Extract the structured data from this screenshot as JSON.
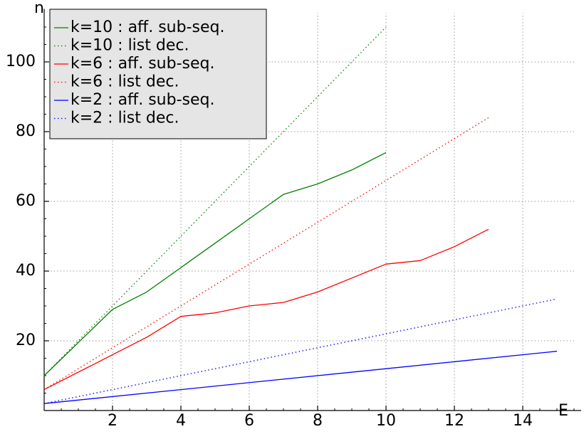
{
  "chart_data": {
    "type": "line",
    "xlabel": "E",
    "ylabel": "n",
    "xlim": [
      0,
      15.5
    ],
    "ylim": [
      0,
      114
    ],
    "xticks": [
      2,
      4,
      6,
      8,
      10,
      12,
      14
    ],
    "yticks": [
      20,
      40,
      60,
      80,
      100
    ],
    "grid": true,
    "legend_position": "top-left",
    "series": [
      {
        "name": "k=10 : aff. sub-seq.",
        "color": "#008000",
        "style": "solid",
        "x": [
          0,
          2,
          3,
          4,
          5,
          6,
          7,
          8,
          9,
          10
        ],
        "y": [
          10,
          29,
          34,
          41,
          48,
          55,
          62,
          65,
          69,
          74
        ]
      },
      {
        "name": "k=10 : list dec.",
        "color": "#008000",
        "style": "dotted",
        "x": [
          0,
          10
        ],
        "y": [
          10,
          110
        ]
      },
      {
        "name": "k=6 : aff. sub-seq.",
        "color": "#ff0000",
        "style": "solid",
        "x": [
          0,
          2,
          3,
          4,
          5,
          6,
          7,
          8,
          9,
          10,
          11,
          12,
          13
        ],
        "y": [
          6,
          16,
          21,
          27,
          28,
          30,
          31,
          34,
          38,
          42,
          43,
          47,
          52
        ]
      },
      {
        "name": "k=6 : list dec.",
        "color": "#ff0000",
        "style": "dotted",
        "x": [
          0,
          13
        ],
        "y": [
          6,
          84
        ]
      },
      {
        "name": "k=2 : aff. sub-seq.",
        "color": "#0000ff",
        "style": "solid",
        "x": [
          0,
          15
        ],
        "y": [
          2,
          17
        ]
      },
      {
        "name": "k=2 : list dec.",
        "color": "#0000ff",
        "style": "dotted",
        "x": [
          0,
          15
        ],
        "y": [
          2,
          32
        ]
      }
    ]
  }
}
